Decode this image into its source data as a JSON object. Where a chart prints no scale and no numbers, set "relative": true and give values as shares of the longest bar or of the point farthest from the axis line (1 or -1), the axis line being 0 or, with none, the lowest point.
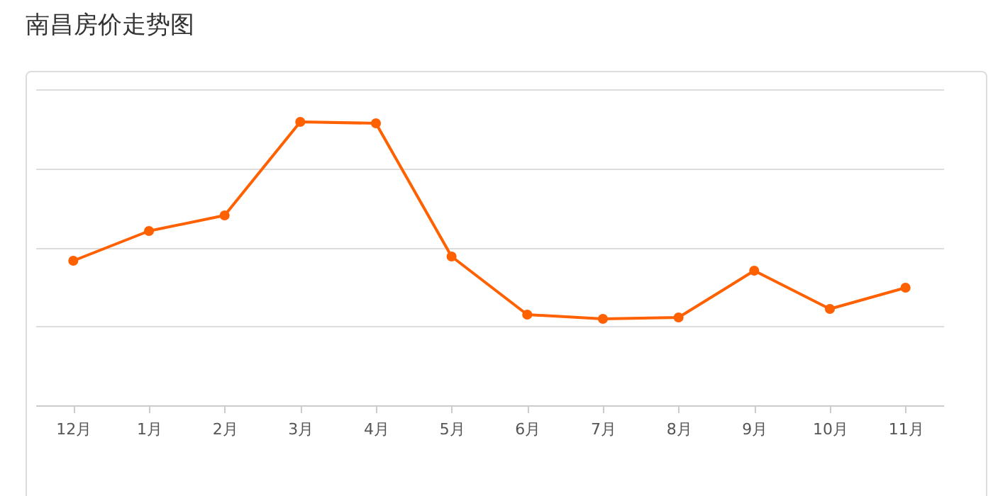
{
  "chart_data": {
    "type": "line",
    "title": "南昌房价走势图",
    "relative": true,
    "grid": "y",
    "marker": "circle",
    "categories": [
      "12月",
      "1月",
      "2月",
      "3月",
      "4月",
      "5月",
      "6月",
      "7月",
      "8月",
      "9月",
      "10月",
      "11月"
    ],
    "series": [
      {
        "color": "#ff6000",
        "values": [
          0.51,
          0.615,
          0.67,
          1,
          0.995,
          0.525,
          0.32,
          0.305,
          0.31,
          0.475,
          0.34,
          0.415
        ]
      }
    ]
  }
}
